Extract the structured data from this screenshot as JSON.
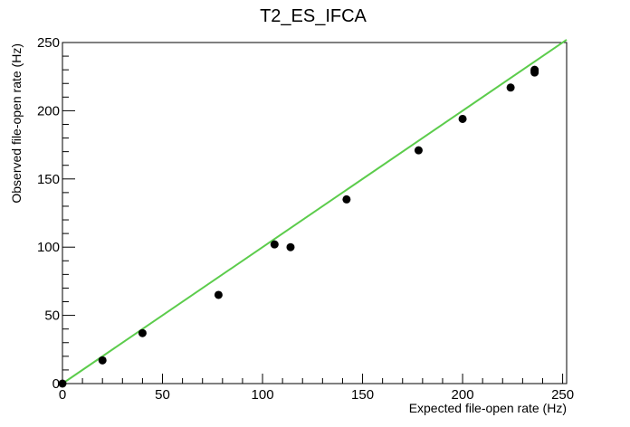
{
  "chart_data": {
    "type": "scatter",
    "title": "T2_ES_IFCA",
    "xlabel": "Expected file-open rate (Hz)",
    "ylabel": "Observed file-open rate (Hz)",
    "xlim": [
      0,
      252
    ],
    "ylim": [
      0,
      250
    ],
    "xticks": [
      0,
      50,
      100,
      150,
      200,
      250
    ],
    "yticks": [
      0,
      50,
      100,
      150,
      200,
      250
    ],
    "grid": false,
    "points": {
      "x": [
        0,
        20,
        40,
        78,
        106,
        114,
        142,
        178,
        200,
        224,
        236,
        236,
        236
      ],
      "y": [
        0,
        17,
        37,
        65,
        102,
        100,
        135,
        171,
        194,
        217,
        229,
        230,
        228
      ]
    },
    "reference_line": {
      "x": [
        0,
        252
      ],
      "y": [
        0,
        252
      ]
    },
    "colors": {
      "points": "#000000",
      "reference_line": "#5ccc4c",
      "axes": "#000000"
    }
  }
}
